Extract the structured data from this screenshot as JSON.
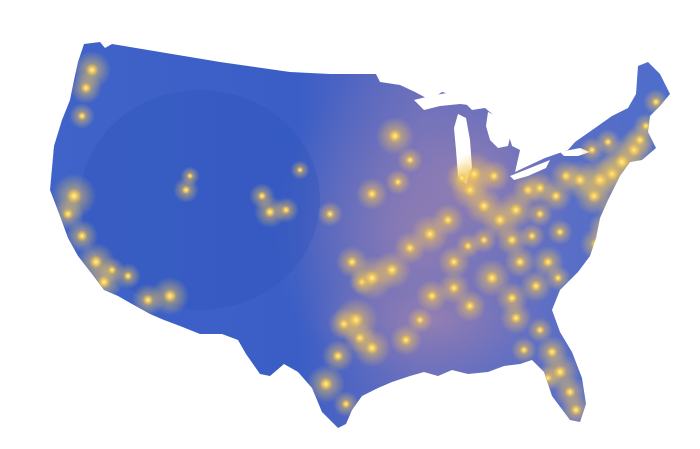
{
  "map": {
    "colors": {
      "background": "#ffffff",
      "land_low": "#3c5fc6",
      "land_mid": "#4b6fcf",
      "land_high": "#5b7dd6",
      "plains_glow": "#8c7bb5",
      "city_core": "#ffe28a",
      "city_glow": "#f7c34f",
      "lakes": "#ffffff"
    },
    "layers": [
      "country-outline",
      "great-lakes",
      "plains-glow",
      "city-lights"
    ]
  }
}
